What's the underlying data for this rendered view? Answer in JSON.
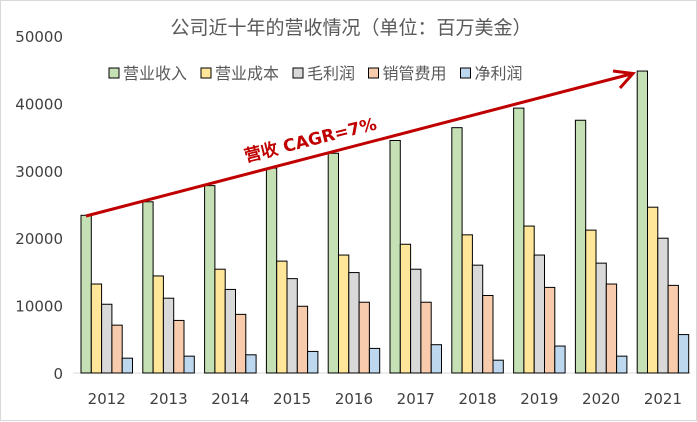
{
  "chart_data": {
    "type": "bar",
    "title": "公司近十年的营收情况（单位：百万美金）",
    "categories": [
      "2012",
      "2013",
      "2014",
      "2015",
      "2016",
      "2017",
      "2018",
      "2019",
      "2020",
      "2021"
    ],
    "ylim": [
      0,
      50000
    ],
    "yticks": [
      0,
      10000,
      20000,
      30000,
      40000,
      50000
    ],
    "grid": false,
    "legend": "top",
    "series": [
      {
        "name": "营业收入",
        "color": "#c5e0b4",
        "values": [
          23400,
          25400,
          27800,
          30400,
          32600,
          34500,
          36400,
          39300,
          37500,
          44800
        ]
      },
      {
        "name": "营业成本",
        "color": "#ffe699",
        "values": [
          13200,
          14400,
          15400,
          16600,
          17500,
          19100,
          20500,
          21800,
          21200,
          24600
        ]
      },
      {
        "name": "毛利润",
        "color": "#d9d9d9",
        "values": [
          10200,
          11100,
          12400,
          14000,
          14900,
          15400,
          16000,
          17500,
          16300,
          20000
        ]
      },
      {
        "name": "销管费用",
        "color": "#f8cbad",
        "values": [
          7100,
          7800,
          8700,
          9900,
          10500,
          10500,
          11500,
          12700,
          13200,
          13000
        ]
      },
      {
        "name": "净利润",
        "color": "#bdd7ee",
        "values": [
          2200,
          2500,
          2700,
          3200,
          3650,
          4200,
          1900,
          4000,
          2500,
          5700
        ]
      }
    ],
    "annotation": {
      "text": "营收 CAGR=7%",
      "color": "#c00000"
    }
  }
}
